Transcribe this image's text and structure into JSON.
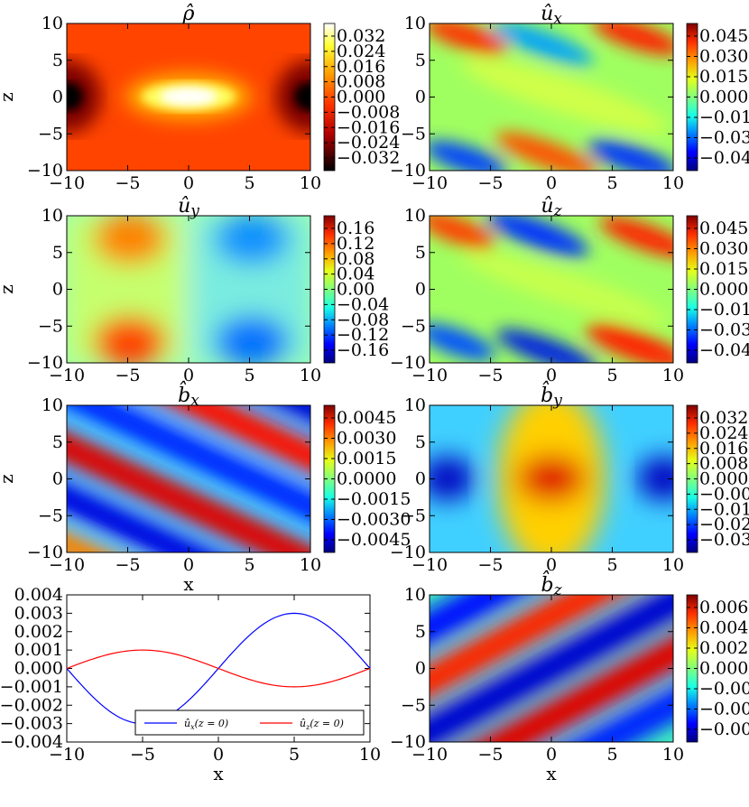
{
  "colors": {
    "jet": [
      "#00007f",
      "#0000ff",
      "#0080ff",
      "#19ffe5",
      "#80ff7d",
      "#e5ff19",
      "#ff9a00",
      "#ff2d00",
      "#7f0000"
    ],
    "hot": [
      "#000000",
      "#b30000",
      "#ff3300",
      "#ff9900",
      "#ffff33",
      "#ffffff"
    ],
    "ux_line": "#0000ff",
    "uz_line": "#ff0000"
  },
  "axis_ticks": [
    "−10",
    "−5",
    "0",
    "5",
    "10"
  ],
  "xlabel": "x",
  "ylabel": "z",
  "chart_data": [
    {
      "type": "heatmap",
      "title": "ρ̂",
      "colormap": "hot",
      "xlim": [
        -10,
        10
      ],
      "ylim": [
        -10,
        10
      ],
      "field": "density blob at origin, dark lobes at x=±10",
      "colorbar_ticks": [
        "0.032",
        "0.024",
        "0.016",
        "0.008",
        "0.000",
        "−0.008",
        "−0.016",
        "−0.024",
        "−0.032"
      ]
    },
    {
      "type": "heatmap",
      "title": "û",
      "title_sub": "x",
      "colormap": "jet",
      "xlim": [
        -10,
        10
      ],
      "ylim": [
        -10,
        10
      ],
      "field": "tilted lobes near z=±10",
      "colorbar_ticks": [
        "0.045",
        "0.030",
        "0.015",
        "0.000",
        "−0.01",
        "−0.03",
        "−0.04"
      ]
    },
    {
      "type": "heatmap",
      "title": "û",
      "title_sub": "y",
      "colormap": "jet",
      "xlim": [
        -10,
        10
      ],
      "ylim": [
        -10,
        10
      ],
      "field": "positive at x≈−5, negative at x≈5, near z=±6",
      "colorbar_ticks": [
        "0.16",
        "0.12",
        "0.08",
        "0.04",
        "0.00",
        "−0.04",
        "−0.08",
        "−0.12",
        "−0.16"
      ]
    },
    {
      "type": "heatmap",
      "title": "û",
      "title_sub": "z",
      "colormap": "jet",
      "xlim": [
        -10,
        10
      ],
      "ylim": [
        -10,
        10
      ],
      "field": "tilted lobes near z=±10",
      "colorbar_ticks": [
        "0.045",
        "0.030",
        "0.015",
        "0.000",
        "−0.01",
        "−0.03",
        "−0.04"
      ]
    },
    {
      "type": "heatmap",
      "title": "b̂",
      "title_sub": "x",
      "colormap": "jet",
      "xlim": [
        -10,
        10
      ],
      "ylim": [
        -10,
        10
      ],
      "field": "diagonal stripes",
      "colorbar_ticks": [
        "0.0045",
        "0.0030",
        "0.0015",
        "0.0000",
        "−0.0015",
        "−0.0030",
        "−0.0045"
      ]
    },
    {
      "type": "heatmap",
      "title": "b̂",
      "title_sub": "y",
      "colormap": "jet",
      "xlim": [
        -10,
        10
      ],
      "ylim": [
        -10,
        10
      ],
      "field": "positive blob at origin, negative at x=±10",
      "colorbar_ticks": [
        "0.032",
        "0.024",
        "0.016",
        "0.008",
        "0.000",
        "−0.00",
        "−0.01",
        "−0.02",
        "−0.03"
      ]
    },
    {
      "type": "line",
      "xlim": [
        -10,
        10
      ],
      "ylim": [
        -0.004,
        0.004
      ],
      "xlabel": "x",
      "yticks": [
        "0.004",
        "0.003",
        "0.002",
        "0.001",
        "0.000",
        "−0.001",
        "−0.002",
        "−0.003",
        "−0.004"
      ],
      "series": [
        {
          "name": "û_x(z = 0)",
          "color": "#0000ff",
          "x": [
            -10,
            -7.5,
            -5,
            -2.5,
            0,
            2.5,
            5,
            7.5,
            10
          ],
          "values": [
            0,
            -0.0021,
            -0.003,
            -0.0021,
            0,
            0.0021,
            0.003,
            0.0021,
            0
          ]
        },
        {
          "name": "û_z(z = 0)",
          "color": "#ff0000",
          "x": [
            -10,
            -7.5,
            -5,
            -2.5,
            0,
            2.5,
            5,
            7.5,
            10
          ],
          "values": [
            0,
            0.0007,
            0.001,
            0.0007,
            0,
            -0.0007,
            -0.001,
            -0.0007,
            0
          ]
        }
      ],
      "legend": "lower-right",
      "legend_main": [
        "û",
        "û"
      ],
      "legend_sub": [
        "x",
        "z"
      ],
      "legend_arg": [
        "(z = 0)",
        "(z = 0)"
      ]
    },
    {
      "type": "heatmap",
      "title": "b̂",
      "title_sub": "z",
      "colormap": "jet",
      "xlim": [
        -10,
        10
      ],
      "ylim": [
        -10,
        10
      ],
      "field": "diagonal stripes (opposite tilt)",
      "colorbar_ticks": [
        "0.006",
        "0.004",
        "0.002",
        "0.000",
        "−0.00",
        "−0.00",
        "−0.00"
      ]
    }
  ]
}
